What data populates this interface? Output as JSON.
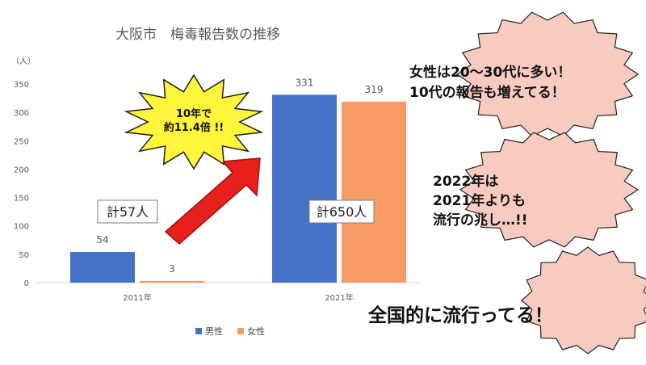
{
  "chart_data": {
    "type": "bar",
    "title": "大阪市　梅毒報告数の推移",
    "unit_label": "（人）",
    "categories": [
      "2011年",
      "2021年"
    ],
    "series": [
      {
        "name": "男性",
        "values": [
          54,
          331
        ],
        "color": "#4472C4"
      },
      {
        "name": "女性",
        "values": [
          3,
          319
        ],
        "color": "#F79A63"
      }
    ],
    "ylim": [
      0,
      350
    ],
    "yticks": [
      0,
      50,
      100,
      150,
      200,
      250,
      300,
      350
    ],
    "grid": false,
    "legend_position": "bottom",
    "data_labels": true
  },
  "annotations": {
    "total_2011": "計57人",
    "total_2021": "計650人",
    "burst_line1": "10年で",
    "burst_line2": "約11.4倍 !!",
    "bubble1_line1": "女性は20～30代に多い！",
    "bubble1_line2": "10代の報告も増えてる！",
    "bubble2_line1": "2022年は",
    "bubble2_line2": "2021年よりも",
    "bubble2_line3": "流行の兆し…!!",
    "bubble3": "全国的に流行ってる！"
  },
  "colors": {
    "burst_fill": "#FFF53A",
    "arrow_fill": "#E8201C",
    "bubble_fill": "#F8CBC1",
    "axis": "#D9D9D9"
  }
}
